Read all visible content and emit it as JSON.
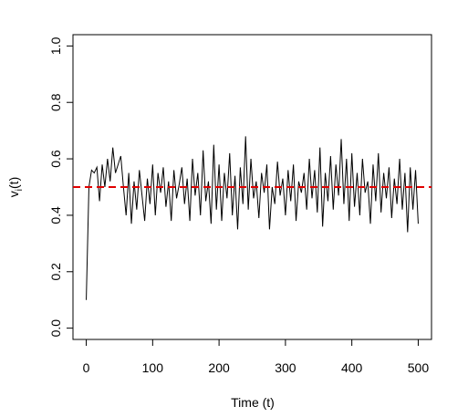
{
  "chart_data": {
    "type": "line",
    "x_label": "Time (t)",
    "y_label": {
      "base": "v",
      "sub": "i",
      "suffix": "(t)"
    },
    "x": [
      0,
      4,
      8,
      12,
      16,
      20,
      24,
      28,
      32,
      36,
      40,
      44,
      48,
      52,
      56,
      60,
      64,
      68,
      72,
      76,
      80,
      84,
      88,
      92,
      96,
      100,
      104,
      108,
      112,
      116,
      120,
      124,
      128,
      132,
      136,
      140,
      144,
      148,
      152,
      156,
      160,
      164,
      168,
      172,
      176,
      180,
      184,
      188,
      192,
      196,
      200,
      204,
      208,
      212,
      216,
      220,
      224,
      228,
      232,
      236,
      240,
      244,
      248,
      252,
      256,
      260,
      264,
      268,
      272,
      276,
      280,
      284,
      288,
      292,
      296,
      300,
      304,
      308,
      312,
      316,
      320,
      324,
      328,
      332,
      336,
      340,
      344,
      348,
      352,
      356,
      360,
      364,
      368,
      372,
      376,
      380,
      384,
      388,
      392,
      396,
      400,
      404,
      408,
      412,
      416,
      420,
      424,
      428,
      432,
      436,
      440,
      444,
      448,
      452,
      456,
      460,
      464,
      468,
      472,
      476,
      480,
      484,
      488,
      492,
      496,
      500
    ],
    "values": [
      0.1,
      0.5,
      0.56,
      0.55,
      0.57,
      0.45,
      0.58,
      0.5,
      0.6,
      0.52,
      0.64,
      0.55,
      0.58,
      0.61,
      0.5,
      0.4,
      0.55,
      0.37,
      0.52,
      0.42,
      0.56,
      0.47,
      0.38,
      0.53,
      0.44,
      0.58,
      0.4,
      0.55,
      0.48,
      0.57,
      0.43,
      0.52,
      0.38,
      0.56,
      0.46,
      0.51,
      0.57,
      0.44,
      0.53,
      0.38,
      0.6,
      0.47,
      0.55,
      0.4,
      0.63,
      0.45,
      0.52,
      0.37,
      0.65,
      0.42,
      0.58,
      0.38,
      0.55,
      0.46,
      0.62,
      0.4,
      0.54,
      0.35,
      0.57,
      0.44,
      0.68,
      0.42,
      0.6,
      0.46,
      0.52,
      0.39,
      0.55,
      0.48,
      0.58,
      0.35,
      0.5,
      0.44,
      0.59,
      0.47,
      0.53,
      0.4,
      0.56,
      0.45,
      0.58,
      0.38,
      0.52,
      0.48,
      0.55,
      0.42,
      0.6,
      0.46,
      0.56,
      0.41,
      0.64,
      0.36,
      0.55,
      0.45,
      0.61,
      0.42,
      0.58,
      0.47,
      0.67,
      0.44,
      0.6,
      0.38,
      0.62,
      0.43,
      0.55,
      0.4,
      0.6,
      0.48,
      0.52,
      0.37,
      0.58,
      0.45,
      0.62,
      0.41,
      0.55,
      0.46,
      0.57,
      0.39,
      0.53,
      0.44,
      0.6,
      0.42,
      0.55,
      0.34,
      0.57,
      0.42,
      0.56,
      0.37
    ],
    "color": "#000000",
    "hline": {
      "value": 0.5,
      "color": "#e00000"
    },
    "xlim": [
      -20,
      520
    ],
    "xticks": [
      0,
      100,
      200,
      300,
      400,
      500
    ],
    "ylim": [
      -0.04,
      1.04
    ],
    "yticks": [
      {
        "value": 0,
        "label": "0.0"
      },
      0.2,
      0.4,
      0.6,
      0.8,
      {
        "value": 1,
        "label": "1.0"
      }
    ]
  }
}
